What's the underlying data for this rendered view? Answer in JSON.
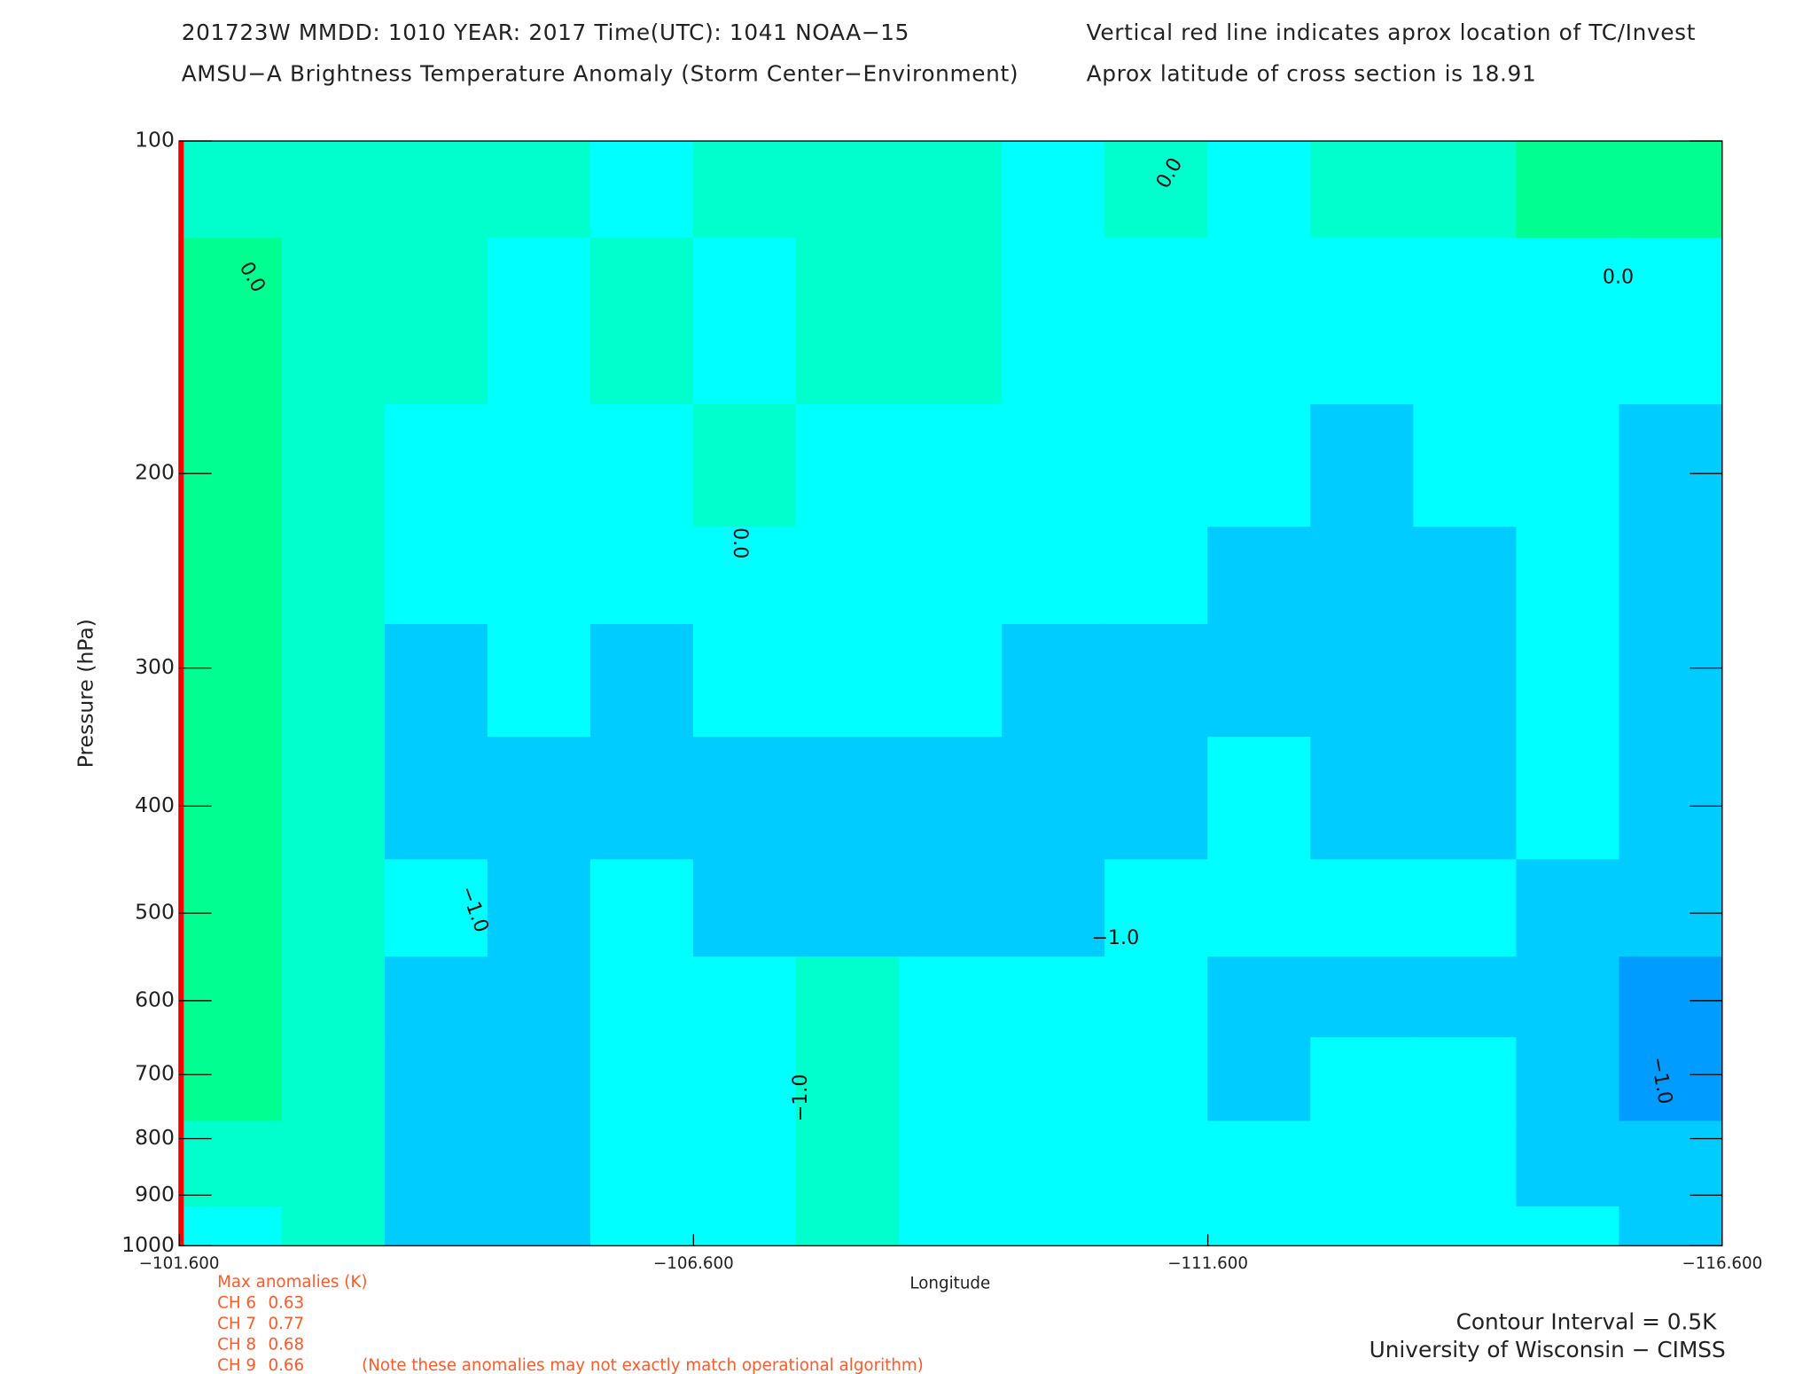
{
  "chart_data": {
    "type": "contour",
    "title_lines": [
      "201723W  MMDD: 1010 YEAR: 2017 Time(UTC): 1041 NOAA−15",
      "AMSU−A Brightness Temperature Anomaly (Storm Center−Environment)"
    ],
    "notes": [
      "Vertical red line indicates aprox location of TC/Invest",
      "Aprox latitude of cross section is 18.91"
    ],
    "x_label": "Longitude",
    "y_label": "Pressure (hPa)",
    "xlim": [
      -101.6,
      -116.6
    ],
    "xticks": [
      {
        "value": -101.6,
        "label": "−101.600"
      },
      {
        "value": -106.6,
        "label": "−106.600"
      },
      {
        "value": -111.6,
        "label": "−111.600"
      },
      {
        "value": -116.6,
        "label": "−116.600"
      }
    ],
    "ylim": [
      100,
      1000
    ],
    "yticks": [
      100,
      200,
      300,
      400,
      500,
      600,
      700,
      800,
      900,
      1000
    ],
    "y_log": true,
    "x": [
      -102.1,
      -103.1,
      -104.1,
      -105.1,
      -106.1,
      -107.1,
      -108.1,
      -109.1,
      -110.1,
      -111.1,
      -112.1,
      -113.1,
      -114.1,
      -115.1,
      -116.1
    ],
    "y": [
      100,
      150,
      200,
      250,
      300,
      400,
      500,
      600,
      700,
      850,
      1000
    ],
    "z": [
      [
        0.2,
        0.2,
        0.2,
        0.2,
        -0.1,
        0.1,
        0.2,
        0.2,
        -0.2,
        0.1,
        -0.2,
        0.1,
        0.2,
        0.6,
        0.6
      ],
      [
        0.55,
        0.2,
        0.05,
        -0.2,
        0.1,
        -0.2,
        0.1,
        0.1,
        -0.2,
        -0.2,
        -0.2,
        -0.2,
        -0.2,
        -0.1,
        -0.2
      ],
      [
        0.6,
        0.2,
        -0.2,
        -0.2,
        -0.2,
        0.1,
        -0.2,
        -0.2,
        -0.2,
        -0.2,
        -0.2,
        -0.6,
        -0.2,
        -0.2,
        -0.6
      ],
      [
        0.6,
        0.2,
        -0.2,
        -0.2,
        -0.2,
        -0.2,
        -0.2,
        -0.2,
        -0.2,
        -0.2,
        -0.6,
        -0.6,
        -0.6,
        -0.2,
        -0.6
      ],
      [
        0.6,
        0.2,
        -0.7,
        -0.4,
        -0.6,
        -0.2,
        -0.2,
        -0.4,
        -0.6,
        -0.7,
        -0.7,
        -0.7,
        -0.7,
        -0.2,
        -0.7
      ],
      [
        0.6,
        0.2,
        -0.7,
        -0.7,
        -0.7,
        -0.7,
        -0.7,
        -0.7,
        -0.7,
        -0.7,
        -0.4,
        -0.7,
        -0.7,
        -0.2,
        -0.7
      ],
      [
        0.55,
        0.2,
        -0.4,
        -0.7,
        -0.4,
        -0.7,
        -0.7,
        -0.7,
        -0.7,
        -0.4,
        -0.4,
        -0.4,
        -0.4,
        -0.7,
        -0.7
      ],
      [
        0.6,
        0.1,
        -0.7,
        -0.7,
        -0.3,
        -0.3,
        0.2,
        -0.3,
        -0.3,
        -0.3,
        -0.7,
        -0.7,
        -0.7,
        -0.7,
        -1.2
      ],
      [
        0.6,
        0.2,
        -0.7,
        -0.7,
        -0.3,
        -0.3,
        0.2,
        -0.3,
        -0.3,
        -0.3,
        -0.7,
        -0.45,
        -0.3,
        -0.7,
        -1.2
      ],
      [
        0.3,
        0.2,
        -0.7,
        -0.7,
        -0.3,
        -0.3,
        0.2,
        -0.3,
        -0.3,
        -0.3,
        -0.3,
        -0.3,
        -0.3,
        -0.7,
        -0.7
      ],
      [
        -0.2,
        0.2,
        -0.7,
        -0.7,
        -0.3,
        -0.3,
        0.2,
        -0.3,
        -0.3,
        -0.3,
        -0.3,
        -0.3,
        -0.3,
        -0.3,
        -0.7
      ]
    ],
    "levels": [
      -1,
      -0.5,
      0,
      0.5
    ],
    "colors": [
      "#009cff",
      "#00ccff",
      "#00ffff",
      "#00ffcc",
      "#00ff90"
    ],
    "contour_labels": [
      "0.0",
      "0.0",
      "0.0",
      "0.0",
      "−1.0",
      "−1.0",
      "−1.0",
      "−1.0"
    ],
    "tc_line_color": "#ff0000",
    "max_anomalies": {
      "title": "Max anomalies (K)",
      "rows": [
        [
          "CH 6",
          0.63
        ],
        [
          "CH 7",
          0.77
        ],
        [
          "CH 8",
          0.68
        ],
        [
          "CH 9",
          0.66
        ]
      ],
      "note": "(Note these anomalies may not exactly match operational algorithm)"
    },
    "footer": [
      "Contour Interval = 0.5K",
      "University of Wisconsin − CIMSS"
    ]
  }
}
